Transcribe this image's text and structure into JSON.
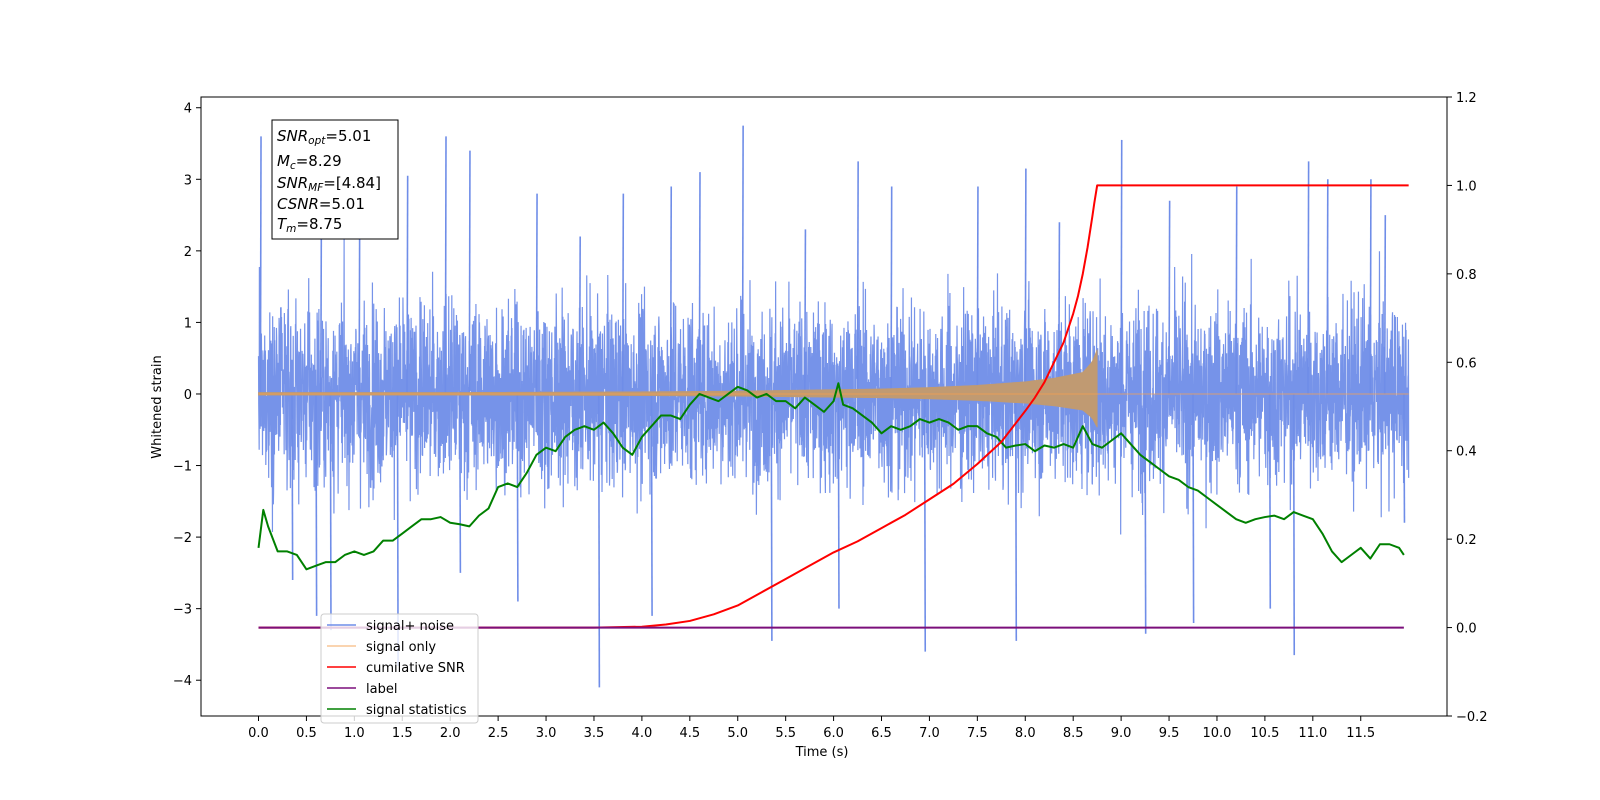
{
  "chart_data": {
    "type": "line",
    "xlabel": "Time (s)",
    "ylabel": "Whitened strain",
    "xlim": [
      -0.6,
      12.4
    ],
    "ylim": [
      -4.5,
      4.15
    ],
    "ylim_right": [
      -0.2,
      1.2
    ],
    "x_ticks": [
      "0.0",
      "0.5",
      "1.0",
      "1.5",
      "2.0",
      "2.5",
      "3.0",
      "3.5",
      "4.0",
      "4.5",
      "5.0",
      "5.5",
      "6.0",
      "6.5",
      "7.0",
      "7.5",
      "8.0",
      "8.5",
      "9.0",
      "9.5",
      "10.0",
      "10.5",
      "11.0",
      "11.5"
    ],
    "y_ticks_left": [
      "4",
      "3",
      "2",
      "1",
      "0",
      "−1",
      "−2",
      "−3",
      "−4"
    ],
    "y_ticks_right": [
      "1.2",
      "1.0",
      "0.8",
      "0.6",
      "0.4",
      "0.2",
      "0.0",
      "−0.2"
    ],
    "legend_placement": "lower-left",
    "annotation": {
      "snr_opt": {
        "base": "SNR",
        "sub": "opt",
        "value": "=5.01"
      },
      "mc": {
        "base": "M",
        "sub": "c",
        "value": "=8.29"
      },
      "snr_mf": {
        "base": "SNR",
        "sub": "MF",
        "value": "=[4.84]"
      },
      "csnr": {
        "base": "CSNR",
        "sub": "",
        "value": "=5.01"
      },
      "tm": {
        "base": "T",
        "sub": "m",
        "value": "=8.75"
      }
    },
    "series": [
      {
        "name": "signal+ noise",
        "color": "#6f8de8",
        "axis": "left",
        "x_range": [
          0.0,
          12.0
        ],
        "typical_band": [
          -1.5,
          1.5
        ],
        "peaks": [
          [
            0.02,
            3.6
          ],
          [
            0.35,
            -2.6
          ],
          [
            0.6,
            -3.1
          ],
          [
            0.65,
            2.6
          ],
          [
            0.75,
            -3.3
          ],
          [
            1.05,
            2.7
          ],
          [
            1.45,
            -3.8
          ],
          [
            1.55,
            3.05
          ],
          [
            1.95,
            3.6
          ],
          [
            2.1,
            -2.5
          ],
          [
            2.2,
            3.4
          ],
          [
            2.7,
            -2.9
          ],
          [
            2.9,
            2.8
          ],
          [
            3.35,
            2.2
          ],
          [
            3.55,
            -4.1
          ],
          [
            3.8,
            2.8
          ],
          [
            4.1,
            -3.1
          ],
          [
            4.3,
            2.9
          ],
          [
            4.6,
            3.1
          ],
          [
            5.05,
            3.75
          ],
          [
            5.35,
            -3.45
          ],
          [
            5.7,
            2.3
          ],
          [
            6.05,
            -3.0
          ],
          [
            6.25,
            3.25
          ],
          [
            6.6,
            2.9
          ],
          [
            6.95,
            -3.6
          ],
          [
            7.5,
            2.9
          ],
          [
            7.9,
            -3.45
          ],
          [
            8.0,
            3.15
          ],
          [
            8.35,
            2.4
          ],
          [
            9.0,
            3.55
          ],
          [
            9.25,
            -3.35
          ],
          [
            9.5,
            2.7
          ],
          [
            9.75,
            -3.2
          ],
          [
            10.2,
            2.9
          ],
          [
            10.55,
            -3.0
          ],
          [
            10.8,
            -3.65
          ],
          [
            10.95,
            3.25
          ],
          [
            11.15,
            3.0
          ],
          [
            11.6,
            3.0
          ],
          [
            11.75,
            2.5
          ],
          [
            11.95,
            -1.8
          ]
        ]
      },
      {
        "name": "signal only",
        "color": "#f5a050",
        "axis": "left",
        "envelope_x": [
          0.0,
          1.0,
          2.0,
          3.0,
          4.0,
          5.0,
          5.5,
          6.0,
          6.5,
          7.0,
          7.5,
          8.0,
          8.3,
          8.6,
          8.7,
          8.75,
          12.0
        ],
        "envelope_amp": [
          0.02,
          0.02,
          0.02,
          0.025,
          0.03,
          0.04,
          0.05,
          0.06,
          0.07,
          0.09,
          0.12,
          0.17,
          0.22,
          0.3,
          0.45,
          0.62,
          0.0
        ]
      },
      {
        "name": "cumilative SNR",
        "color": "#ff0000",
        "axis": "right",
        "x": [
          0.0,
          3.5,
          4.0,
          4.25,
          4.5,
          4.75,
          5.0,
          5.25,
          5.5,
          5.75,
          6.0,
          6.25,
          6.5,
          6.75,
          7.0,
          7.25,
          7.5,
          7.75,
          8.0,
          8.1,
          8.2,
          8.3,
          8.4,
          8.5,
          8.55,
          8.6,
          8.65,
          8.7,
          8.72,
          8.75,
          12.0
        ],
        "y": [
          0.0,
          0.0,
          0.002,
          0.007,
          0.015,
          0.03,
          0.05,
          0.08,
          0.11,
          0.14,
          0.17,
          0.195,
          0.225,
          0.255,
          0.29,
          0.325,
          0.37,
          0.42,
          0.49,
          0.52,
          0.555,
          0.6,
          0.645,
          0.71,
          0.75,
          0.8,
          0.86,
          0.93,
          0.96,
          1.0,
          1.0
        ]
      },
      {
        "name": "label",
        "color": "#7b0f7b",
        "axis": "right",
        "x": [
          0.0,
          11.95
        ],
        "y": [
          0.0,
          0.0
        ]
      },
      {
        "name": "signal statistics",
        "color": "#008000",
        "axis": "left",
        "x": [
          0.0,
          0.05,
          0.1,
          0.2,
          0.3,
          0.4,
          0.5,
          0.6,
          0.7,
          0.8,
          0.9,
          1.0,
          1.1,
          1.2,
          1.3,
          1.4,
          1.5,
          1.6,
          1.7,
          1.8,
          1.9,
          2.0,
          2.1,
          2.2,
          2.3,
          2.4,
          2.5,
          2.6,
          2.7,
          2.8,
          2.9,
          3.0,
          3.1,
          3.2,
          3.3,
          3.4,
          3.5,
          3.6,
          3.7,
          3.8,
          3.9,
          4.0,
          4.1,
          4.2,
          4.3,
          4.4,
          4.5,
          4.6,
          4.7,
          4.8,
          4.9,
          5.0,
          5.1,
          5.2,
          5.3,
          5.4,
          5.5,
          5.6,
          5.7,
          5.8,
          5.9,
          6.0,
          6.05,
          6.1,
          6.2,
          6.3,
          6.4,
          6.5,
          6.6,
          6.7,
          6.8,
          6.9,
          7.0,
          7.1,
          7.2,
          7.3,
          7.4,
          7.5,
          7.6,
          7.7,
          7.8,
          7.9,
          8.0,
          8.1,
          8.2,
          8.3,
          8.4,
          8.5,
          8.6,
          8.7,
          8.8,
          8.9,
          9.0,
          9.1,
          9.2,
          9.3,
          9.4,
          9.5,
          9.6,
          9.7,
          9.8,
          9.9,
          10.0,
          10.1,
          10.2,
          10.3,
          10.4,
          10.5,
          10.6,
          10.7,
          10.8,
          10.9,
          11.0,
          11.1,
          11.2,
          11.3,
          11.4,
          11.5,
          11.6,
          11.7,
          11.8,
          11.9,
          11.95
        ],
        "y": [
          -2.15,
          -1.62,
          -1.85,
          -2.2,
          -2.2,
          -2.25,
          -2.45,
          -2.4,
          -2.35,
          -2.35,
          -2.25,
          -2.2,
          -2.25,
          -2.2,
          -2.05,
          -2.05,
          -1.95,
          -1.85,
          -1.75,
          -1.75,
          -1.72,
          -1.8,
          -1.82,
          -1.85,
          -1.7,
          -1.6,
          -1.3,
          -1.25,
          -1.3,
          -1.1,
          -0.85,
          -0.75,
          -0.8,
          -0.6,
          -0.5,
          -0.45,
          -0.5,
          -0.4,
          -0.55,
          -0.75,
          -0.85,
          -0.6,
          -0.45,
          -0.3,
          -0.3,
          -0.35,
          -0.15,
          0.0,
          -0.05,
          -0.1,
          0.0,
          0.1,
          0.05,
          -0.05,
          0.0,
          -0.1,
          -0.1,
          -0.2,
          -0.05,
          -0.15,
          -0.25,
          -0.1,
          0.15,
          -0.15,
          -0.2,
          -0.3,
          -0.4,
          -0.55,
          -0.45,
          -0.5,
          -0.45,
          -0.35,
          -0.4,
          -0.35,
          -0.4,
          -0.5,
          -0.45,
          -0.45,
          -0.55,
          -0.6,
          -0.75,
          -0.72,
          -0.7,
          -0.8,
          -0.72,
          -0.75,
          -0.7,
          -0.75,
          -0.45,
          -0.7,
          -0.75,
          -0.65,
          -0.55,
          -0.7,
          -0.85,
          -0.95,
          -1.05,
          -1.15,
          -1.2,
          -1.3,
          -1.35,
          -1.45,
          -1.55,
          -1.65,
          -1.75,
          -1.8,
          -1.75,
          -1.72,
          -1.7,
          -1.75,
          -1.65,
          -1.7,
          -1.75,
          -1.95,
          -2.2,
          -2.35,
          -2.25,
          -2.15,
          -2.3,
          -2.1,
          -2.1,
          -2.15,
          -2.25
        ]
      }
    ]
  }
}
